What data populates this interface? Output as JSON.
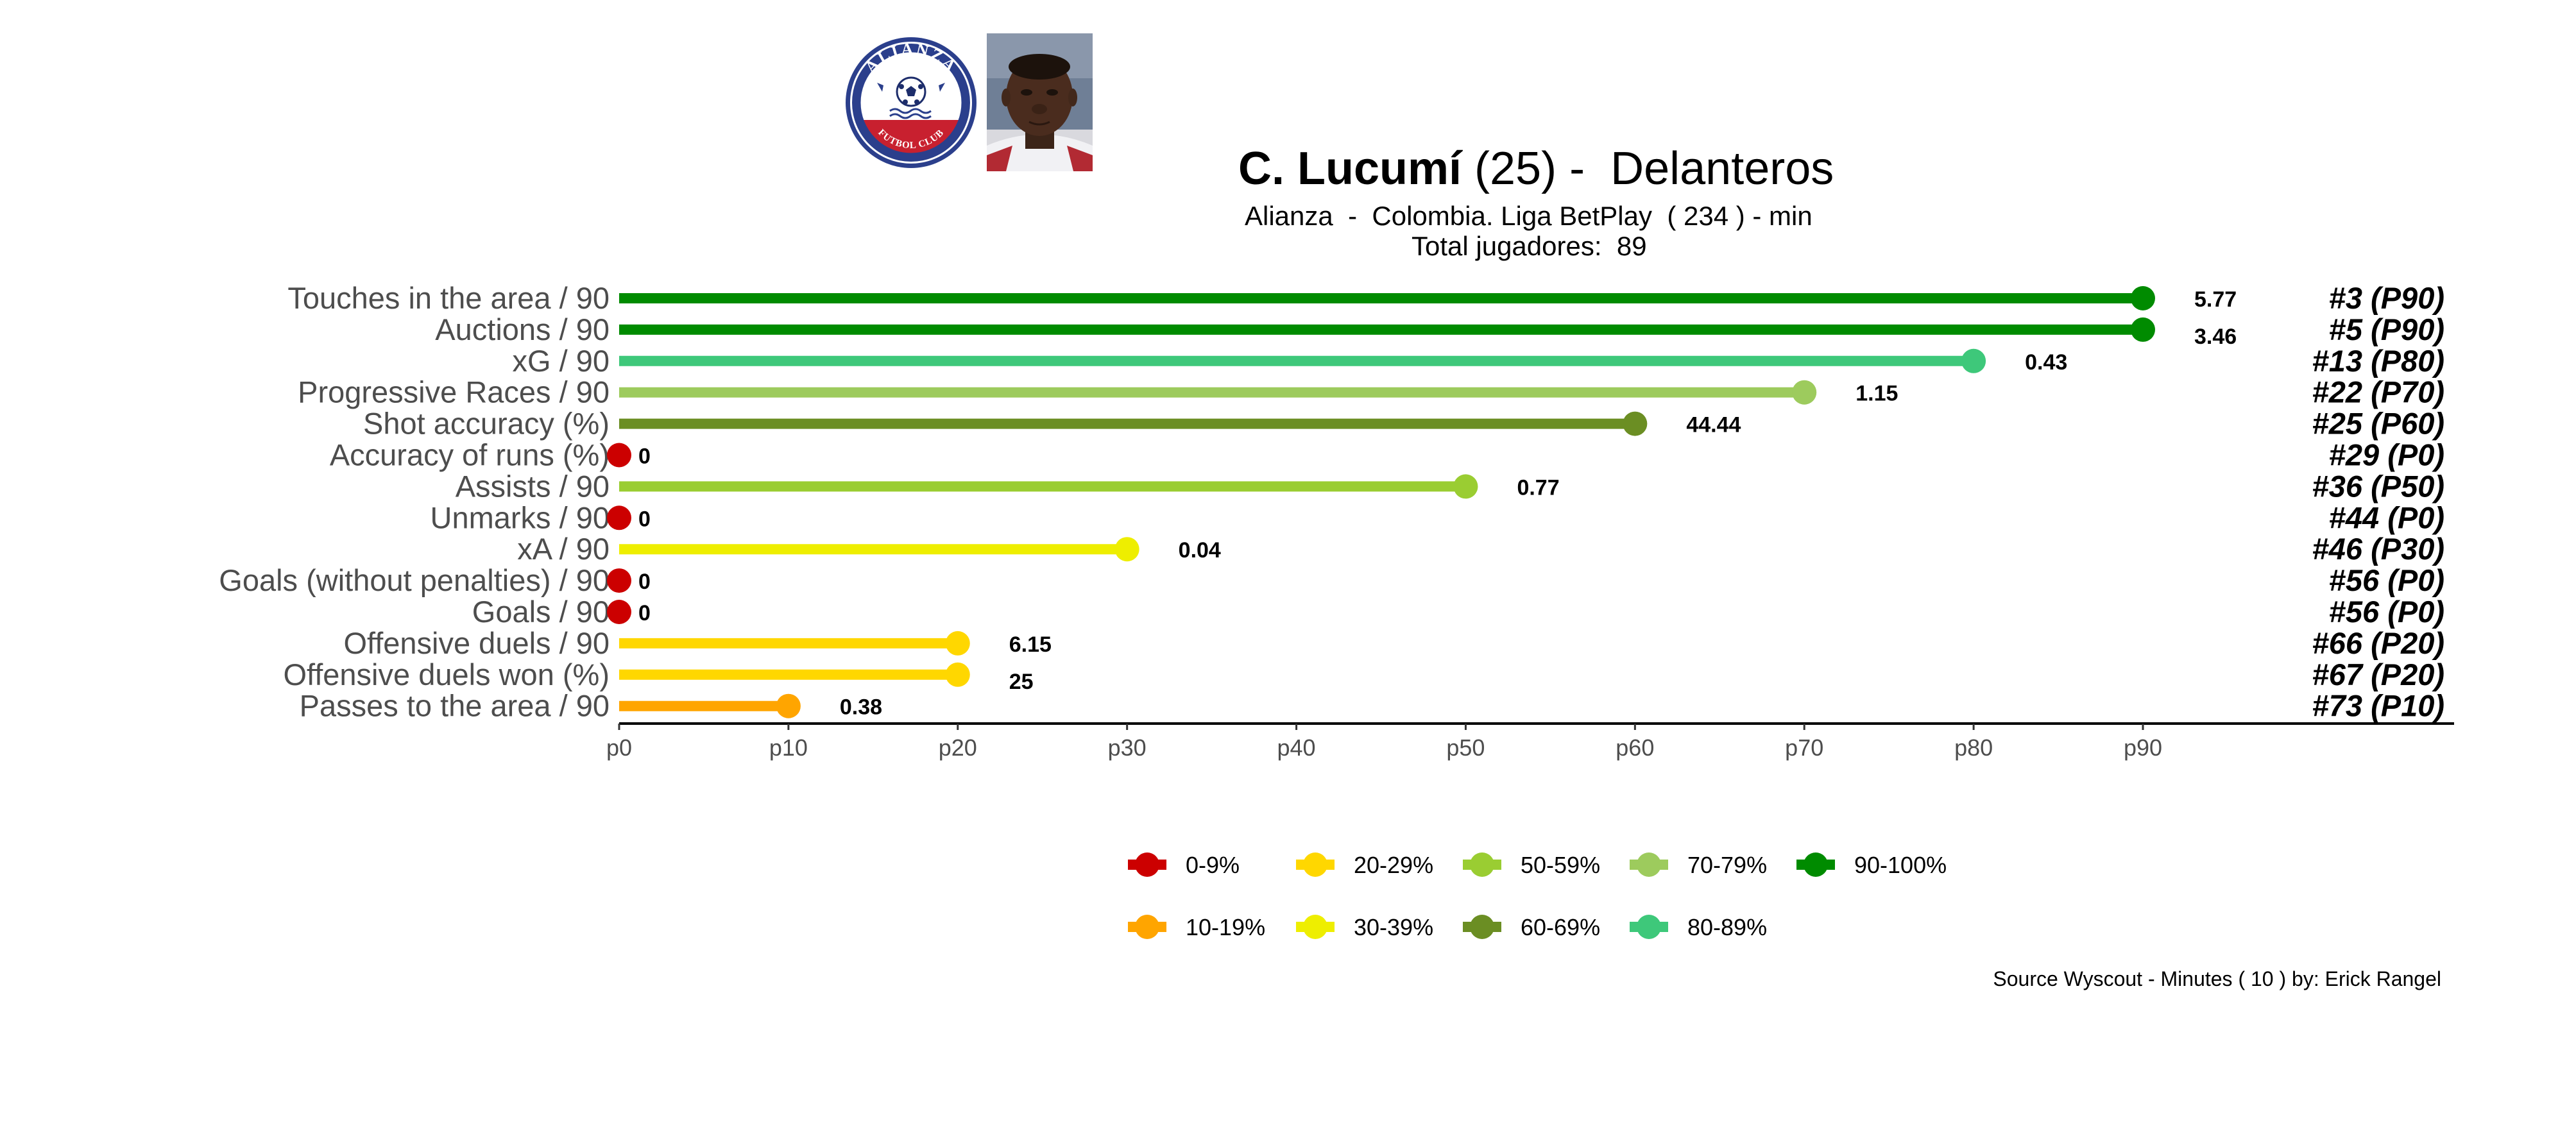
{
  "header": {
    "player_name": "C. Lucumí",
    "player_age": "(25)",
    "separator": " -  ",
    "position": "Delanteros",
    "subtitle": "Alianza  -  Colombia. Liga BetPlay  ( 234 ) - min",
    "total_players": "Total jugadores:  89"
  },
  "footer": {
    "source": "Source Wyscout - Minutes ( 10 ) by: Erick Rangel"
  },
  "badge": {
    "top_text": "ALIANZA",
    "bottom_text": "FUTBOL CLUB",
    "primary_color": "#2b3f8c",
    "accent_color": "#c8202f"
  },
  "chart_data": {
    "type": "lollipop",
    "x_ticks": [
      "p0",
      "p10",
      "p20",
      "p30",
      "p40",
      "p50",
      "p60",
      "p70",
      "p80",
      "p90"
    ],
    "xlim": [
      0,
      100
    ],
    "rows": [
      {
        "metric": "Touches in the area / 90",
        "percentile": 90,
        "value": "5.77",
        "rank": "#3 (P90)",
        "color": "#008b00"
      },
      {
        "metric": "Auctions / 90",
        "percentile": 90,
        "value": "3.46",
        "rank": "#5 (P90)",
        "color": "#008b00"
      },
      {
        "metric": "xG / 90",
        "percentile": 80,
        "value": "0.43",
        "rank": "#13 (P80)",
        "color": "#3ec87a"
      },
      {
        "metric": "Progressive Races / 90",
        "percentile": 70,
        "value": "1.15",
        "rank": "#22 (P70)",
        "color": "#9dcb5d"
      },
      {
        "metric": "Shot accuracy (%)",
        "percentile": 60,
        "value": "44.44",
        "rank": "#25 (P60)",
        "color": "#6b8e23"
      },
      {
        "metric": "Accuracy of runs (%)",
        "percentile": 0,
        "value": "0",
        "rank": "#29 (P0)",
        "color": "#cc0000"
      },
      {
        "metric": "Assists / 90",
        "percentile": 50,
        "value": "0.77",
        "rank": "#36 (P50)",
        "color": "#9acd32"
      },
      {
        "metric": "Unmarks / 90",
        "percentile": 0,
        "value": "0",
        "rank": "#44 (P0)",
        "color": "#cc0000"
      },
      {
        "metric": "xA / 90",
        "percentile": 30,
        "value": "0.04",
        "rank": "#46 (P30)",
        "color": "#eeee00"
      },
      {
        "metric": "Goals (without penalties) / 90",
        "percentile": 0,
        "value": "0",
        "rank": "#56 (P0)",
        "color": "#cc0000"
      },
      {
        "metric": "Goals / 90",
        "percentile": 0,
        "value": "0",
        "rank": "#56 (P0)",
        "color": "#cc0000"
      },
      {
        "metric": "Offensive duels / 90",
        "percentile": 20,
        "value": "6.15",
        "rank": "#66 (P20)",
        "color": "#ffd700"
      },
      {
        "metric": "Offensive duels won (%)",
        "percentile": 20,
        "value": "25",
        "rank": "#67 (P20)",
        "color": "#ffd700"
      },
      {
        "metric": "Passes to the area / 90",
        "percentile": 10,
        "value": "0.38",
        "rank": "#73 (P10)",
        "color": "#ffa500"
      }
    ],
    "legend": [
      {
        "label": "0-9%",
        "color": "#cc0000"
      },
      {
        "label": "20-29%",
        "color": "#ffd700"
      },
      {
        "label": "50-59%",
        "color": "#9acd32"
      },
      {
        "label": "70-79%",
        "color": "#9dcb5d"
      },
      {
        "label": "90-100%",
        "color": "#008b00"
      },
      {
        "label": "10-19%",
        "color": "#ffa500"
      },
      {
        "label": "30-39%",
        "color": "#eeee00"
      },
      {
        "label": "60-69%",
        "color": "#6b8e23"
      },
      {
        "label": "80-89%",
        "color": "#3ec87a"
      }
    ],
    "legend_position": "bottom"
  }
}
